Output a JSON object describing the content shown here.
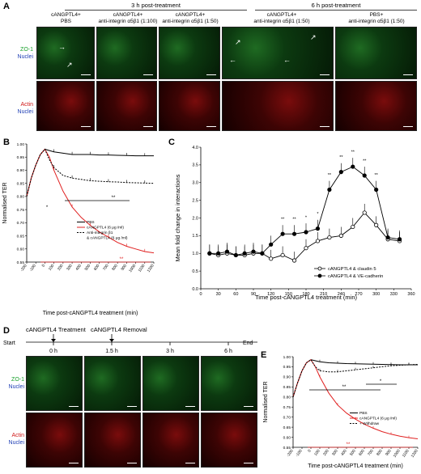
{
  "panel_labels": {
    "a": "A",
    "b": "B",
    "c": "C",
    "d": "D",
    "e": "E"
  },
  "panel_a": {
    "groups": [
      {
        "title": "3 h post-treatment"
      },
      {
        "title": "6 h post-treatment"
      }
    ],
    "columns": [
      {
        "line1": "cANGPTL4+",
        "line2": "PBS"
      },
      {
        "line1": "cANGPTL4+",
        "line2": "anti-integrin α5β1 (1:100)"
      },
      {
        "line1": "cANGPTL4+",
        "line2": "anti-integrin α5β1 (1:50)"
      },
      {
        "line1": "cANGPTL4+",
        "line2": "anti-integrin α5β1 (1:50)"
      },
      {
        "line1": "PBS+",
        "line2": "anti-integrin α5β1 (1:50)"
      }
    ],
    "row_labels": [
      {
        "stain": "ZO-1",
        "nuclei": "Nuclei"
      },
      {
        "stain": "Actin",
        "nuclei": "Nuclei"
      }
    ]
  },
  "panel_b": {
    "ylabel": "Normalised TER",
    "xlabel": "Time post-cANGPTL4 treatment (min)",
    "legend": [
      "PBS",
      "cANGPTL4 (6 μg /ml)",
      "Anti-integrin β1",
      "& cANGPTL4 (6 μg /ml)"
    ],
    "sig": [
      "*",
      "**",
      "**"
    ]
  },
  "panel_c": {
    "ylabel": "Mean fold change in interactions",
    "xlabel": "Time post-cANGPTL4 treatment (min)",
    "legend": [
      "cANGPTL4 & claudin 5",
      "cANGPTL4 & VE-cadherin"
    ],
    "sig": "**"
  },
  "panel_d": {
    "timeline": {
      "start": "Start",
      "end": "End",
      "treatment": "cANGPTL4 Treatment",
      "removal": "cANGPTL4 Removal"
    },
    "timepoints": [
      "0 h",
      "1.5 h",
      "3 h",
      "6 h"
    ],
    "row_labels": [
      {
        "stain": "ZO-1",
        "nuclei": "Nuclei"
      },
      {
        "stain": "Actin",
        "nuclei": "Nuclei"
      }
    ]
  },
  "panel_e": {
    "ylabel": "Normalised TER",
    "xlabel": "Time post-cANGPTL4 treatment (min)",
    "legend": [
      "PBS",
      "cANGPTL4 (6 μg /ml)",
      "+ Withdraw"
    ],
    "sig": [
      "*",
      "**",
      "**"
    ]
  },
  "chart_data": [
    {
      "id": "B",
      "type": "line",
      "xlabel": "Time post-cANGPTL4 treatment (min)",
      "ylabel": "Normalised TER",
      "xlim": [
        -200,
        1200
      ],
      "ylim": [
        0.55,
        1.0
      ],
      "xticks": [
        -200,
        -100,
        0,
        100,
        200,
        300,
        400,
        500,
        600,
        700,
        800,
        900,
        1000,
        1100,
        1200
      ],
      "yticks": [
        0.55,
        0.6,
        0.65,
        0.7,
        0.75,
        0.8,
        0.85,
        0.9,
        0.95,
        1.0
      ],
      "series": [
        {
          "name": "PBS",
          "color": "#000000",
          "style": "solid",
          "x": [
            -200,
            -150,
            -100,
            -50,
            0,
            50,
            100,
            200,
            300,
            400,
            500,
            600,
            700,
            800,
            900,
            1000,
            1100,
            1200
          ],
          "y": [
            0.8,
            0.87,
            0.92,
            0.96,
            0.98,
            0.975,
            0.97,
            0.965,
            0.96,
            0.96,
            0.96,
            0.958,
            0.958,
            0.957,
            0.956,
            0.955,
            0.955,
            0.955
          ]
        },
        {
          "name": "cANGPTL4 (6 μg /ml)",
          "color": "#e02020",
          "style": "solid",
          "x": [
            -200,
            -150,
            -100,
            -50,
            0,
            50,
            100,
            200,
            300,
            400,
            500,
            600,
            700,
            800,
            900,
            1000,
            1100,
            1200
          ],
          "y": [
            0.8,
            0.87,
            0.92,
            0.96,
            0.98,
            0.95,
            0.9,
            0.82,
            0.76,
            0.72,
            0.69,
            0.665,
            0.645,
            0.625,
            0.61,
            0.6,
            0.59,
            0.585
          ]
        },
        {
          "name": "Anti-integrin β1 & cANGPTL4 (6 μg /ml)",
          "color": "#000000",
          "style": "dashed",
          "x": [
            -200,
            -150,
            -100,
            -50,
            0,
            50,
            100,
            200,
            300,
            400,
            500,
            600,
            700,
            800,
            900,
            1000,
            1100,
            1200
          ],
          "y": [
            0.8,
            0.87,
            0.92,
            0.96,
            0.98,
            0.94,
            0.91,
            0.88,
            0.87,
            0.865,
            0.86,
            0.858,
            0.856,
            0.855,
            0.853,
            0.852,
            0.851,
            0.85
          ]
        }
      ]
    },
    {
      "id": "C",
      "type": "line",
      "xlabel": "Time post-cANGPTL4 treatment (min)",
      "ylabel": "Mean fold change in interactions",
      "xlim": [
        0,
        360
      ],
      "ylim": [
        0,
        4.0
      ],
      "xticks": [
        0,
        30,
        60,
        90,
        120,
        150,
        180,
        210,
        240,
        270,
        300,
        330,
        360
      ],
      "yticks": [
        0,
        0.5,
        1.0,
        1.5,
        2.0,
        2.5,
        3.0,
        3.5,
        4.0
      ],
      "series": [
        {
          "name": "cANGPTL4 & claudin 5",
          "marker": "open",
          "x": [
            15,
            30,
            45,
            60,
            75,
            90,
            105,
            120,
            140,
            160,
            180,
            200,
            220,
            240,
            260,
            280,
            300,
            320,
            340
          ],
          "y": [
            1.0,
            0.95,
            1.0,
            0.95,
            0.95,
            1.0,
            1.0,
            0.85,
            0.95,
            0.8,
            1.15,
            1.35,
            1.45,
            1.5,
            1.75,
            2.15,
            1.8,
            1.4,
            1.35
          ]
        },
        {
          "name": "cANGPTL4 & VE-cadherin",
          "marker": "filled",
          "x": [
            15,
            30,
            45,
            60,
            75,
            90,
            105,
            120,
            140,
            160,
            180,
            200,
            220,
            240,
            260,
            280,
            300,
            320,
            340
          ],
          "y": [
            1.0,
            1.0,
            1.05,
            0.95,
            1.0,
            1.05,
            1.0,
            1.25,
            1.55,
            1.55,
            1.6,
            1.7,
            2.8,
            3.3,
            3.45,
            3.2,
            2.8,
            1.45,
            1.4
          ]
        }
      ]
    },
    {
      "id": "E",
      "type": "line",
      "xlabel": "Time post-cANGPTL4 treatment (min)",
      "ylabel": "Normalised TER",
      "xlim": [
        -200,
        1200
      ],
      "ylim": [
        0.55,
        1.0
      ],
      "xticks": [
        -200,
        -100,
        0,
        100,
        200,
        300,
        400,
        500,
        600,
        700,
        800,
        900,
        1000,
        1100,
        1200
      ],
      "yticks": [
        0.55,
        0.6,
        0.65,
        0.7,
        0.75,
        0.8,
        0.85,
        0.9,
        0.95,
        1.0
      ],
      "series": [
        {
          "name": "PBS",
          "color": "#000000",
          "style": "solid",
          "x": [
            -200,
            -150,
            -100,
            -50,
            0,
            50,
            100,
            200,
            300,
            400,
            500,
            600,
            700,
            800,
            900,
            1000,
            1100,
            1200
          ],
          "y": [
            0.8,
            0.87,
            0.93,
            0.97,
            0.985,
            0.98,
            0.975,
            0.97,
            0.968,
            0.966,
            0.965,
            0.964,
            0.963,
            0.962,
            0.961,
            0.96,
            0.96,
            0.96
          ]
        },
        {
          "name": "cANGPTL4 (6 μg /ml)",
          "color": "#e02020",
          "style": "solid",
          "x": [
            -200,
            -150,
            -100,
            -50,
            0,
            50,
            100,
            200,
            300,
            400,
            500,
            600,
            700,
            800,
            900,
            1000,
            1100,
            1200
          ],
          "y": [
            0.8,
            0.87,
            0.93,
            0.97,
            0.985,
            0.95,
            0.9,
            0.82,
            0.76,
            0.72,
            0.69,
            0.665,
            0.645,
            0.628,
            0.615,
            0.605,
            0.598,
            0.592
          ]
        },
        {
          "name": "+ Withdraw",
          "color": "#000000",
          "style": "dashed",
          "x": [
            -200,
            -150,
            -100,
            -50,
            0,
            50,
            100,
            200,
            300,
            400,
            500,
            600,
            700,
            800,
            900,
            1000,
            1100,
            1200
          ],
          "y": [
            0.8,
            0.87,
            0.93,
            0.97,
            0.985,
            0.95,
            0.93,
            0.925,
            0.925,
            0.93,
            0.935,
            0.94,
            0.945,
            0.95,
            0.955,
            0.958,
            0.96,
            0.962
          ]
        }
      ]
    }
  ]
}
